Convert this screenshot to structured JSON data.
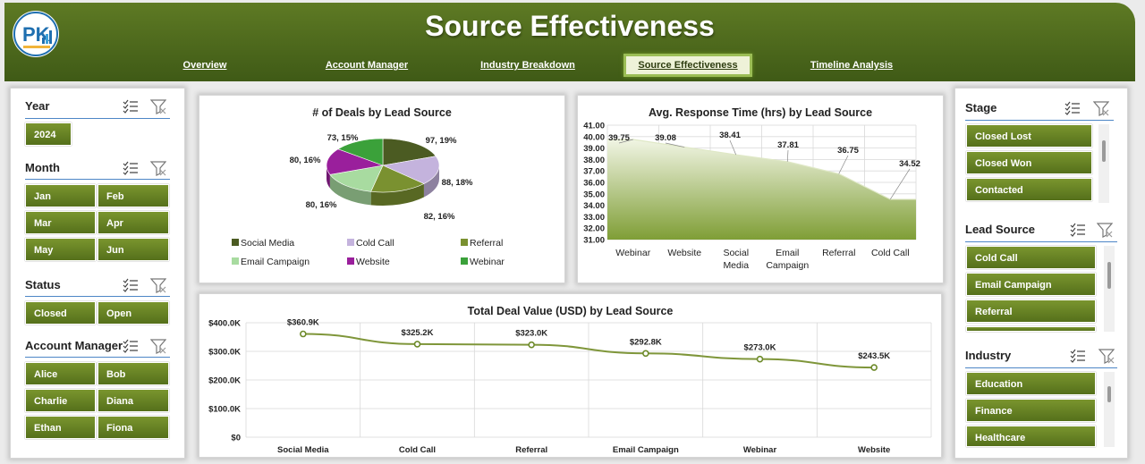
{
  "header": {
    "title": "Source Effectiveness",
    "logo_text": "PK",
    "brand_color": "#4a661c"
  },
  "nav": {
    "tabs": [
      {
        "label": "Overview",
        "active": false
      },
      {
        "label": "Account Manager",
        "active": false
      },
      {
        "label": "Industry Breakdown",
        "active": false
      },
      {
        "label": "Source Effectiveness",
        "active": true
      },
      {
        "label": "Timeline Analysis",
        "active": false
      }
    ]
  },
  "left_slicers": {
    "year": {
      "title": "Year",
      "items": [
        "2024"
      ]
    },
    "month": {
      "title": "Month",
      "items": [
        "Jan",
        "Feb",
        "Mar",
        "Apr",
        "May",
        "Jun"
      ]
    },
    "status": {
      "title": "Status",
      "items": [
        "Closed",
        "Open"
      ]
    },
    "account_manager": {
      "title": "Account Manager",
      "items": [
        "Alice",
        "Bob",
        "Charlie",
        "Diana",
        "Ethan",
        "Fiona"
      ]
    }
  },
  "right_slicers": {
    "stage": {
      "title": "Stage",
      "items": [
        "Closed Lost",
        "Closed Won",
        "Contacted"
      ]
    },
    "lead_source": {
      "title": "Lead Source",
      "items": [
        "Cold Call",
        "Email Campaign",
        "Referral"
      ]
    },
    "industry": {
      "title": "Industry",
      "items": [
        "Education",
        "Finance",
        "Healthcare"
      ]
    }
  },
  "chart_data": [
    {
      "type": "pie",
      "title": "# of Deals by Lead Source",
      "categories": [
        "Social Media",
        "Cold Call",
        "Referral",
        "Email Campaign",
        "Website",
        "Webinar"
      ],
      "values": [
        97,
        88,
        82,
        80,
        80,
        73
      ],
      "percent_labels": [
        "19%",
        "18%",
        "16%",
        "16%",
        "16%",
        "15%"
      ],
      "data_labels": [
        "97, 19%",
        "88, 18%",
        "82, 16%",
        "80, 16%",
        "80, 16%",
        "73, 15%"
      ],
      "colors": [
        "#4b5b22",
        "#c4b3dd",
        "#7a9130",
        "#a8dba0",
        "#9a1f9c",
        "#3ba13a"
      ],
      "legend": "bottom"
    },
    {
      "type": "area",
      "title": "Avg. Response Time (hrs) by Lead Source",
      "categories": [
        "Webinar",
        "Website",
        "Social Media",
        "Email Campaign",
        "Referral",
        "Cold Call"
      ],
      "values": [
        39.75,
        39.08,
        38.41,
        37.81,
        36.75,
        34.52
      ],
      "data_labels": [
        "39.75",
        "39.08",
        "38.41",
        "37.81",
        "36.75",
        "34.52"
      ],
      "ylim": [
        31.0,
        41.0
      ],
      "yticks": [
        "41.00",
        "40.00",
        "39.00",
        "38.00",
        "37.00",
        "36.00",
        "35.00",
        "34.00",
        "33.00",
        "32.00",
        "31.00"
      ],
      "grid": true
    },
    {
      "type": "line",
      "title": "Total Deal Value (USD) by Lead Source",
      "categories": [
        "Social Media",
        "Cold Call",
        "Referral",
        "Email Campaign",
        "Webinar",
        "Website"
      ],
      "values": [
        360900,
        325200,
        323000,
        292800,
        273000,
        243500
      ],
      "data_labels": [
        "$360.9K",
        "$325.2K",
        "$323.0K",
        "$292.8K",
        "$273.0K",
        "$243.5K"
      ],
      "ylim": [
        0,
        400000
      ],
      "yticks": [
        "$400.0K",
        "$300.0K",
        "$200.0K",
        "$100.0K",
        "$0"
      ],
      "grid": true
    }
  ]
}
